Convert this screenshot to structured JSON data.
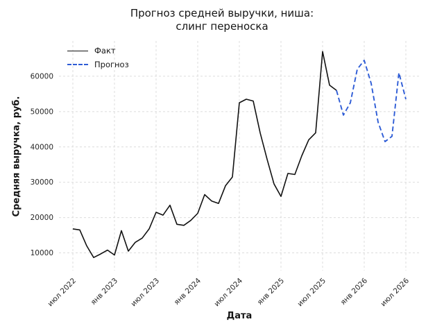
{
  "chart_data": {
    "type": "line",
    "title_lines": [
      "Прогноз средней выручки, ниша:",
      "слинг переноска"
    ],
    "xlabel": "Дата",
    "ylabel": "Средняя выручка, руб.",
    "xlim": [
      -2,
      50
    ],
    "ylim": [
      5000,
      70000
    ],
    "grid": true,
    "grid_color": "#dcdcdc",
    "legend_position": "upper left",
    "xticks": {
      "positions": [
        0,
        6,
        12,
        18,
        24,
        30,
        36,
        42,
        48
      ],
      "labels": [
        "июл 2022",
        "янв 2023",
        "июл 2023",
        "янв 2024",
        "июл 2024",
        "янв 2025",
        "июл 2025",
        "янв 2026",
        "июл 2026"
      ]
    },
    "yticks": [
      10000,
      20000,
      30000,
      40000,
      50000,
      60000
    ],
    "series": [
      {
        "name": "Факт",
        "color": "#111111",
        "style": "solid",
        "x": [
          0,
          1,
          2,
          3,
          4,
          5,
          6,
          7,
          8,
          9,
          10,
          11,
          12,
          13,
          14,
          15,
          16,
          17,
          18,
          19,
          20,
          21,
          22,
          23,
          24,
          25,
          26,
          27,
          28,
          29,
          30,
          31,
          32,
          33,
          34,
          35,
          36,
          37,
          38
        ],
        "y": [
          16800,
          16500,
          12000,
          8700,
          9700,
          10800,
          9400,
          16300,
          10500,
          13000,
          14200,
          16800,
          21500,
          20700,
          23500,
          18100,
          17800,
          19200,
          21200,
          26500,
          24700,
          24000,
          29000,
          31500,
          52500,
          53500,
          53000,
          44000,
          36500,
          29500,
          26000,
          32500,
          32200,
          37500,
          42000,
          44000,
          67000,
          57500,
          56000
        ]
      },
      {
        "name": "Прогноз",
        "color": "#2e5cd6",
        "style": "dashed",
        "x": [
          38,
          39,
          40,
          41,
          42,
          43,
          44,
          45,
          46,
          47,
          48
        ],
        "y": [
          56000,
          49000,
          52500,
          62000,
          64500,
          58000,
          47000,
          41500,
          43000,
          61000,
          53500
        ]
      }
    ]
  }
}
